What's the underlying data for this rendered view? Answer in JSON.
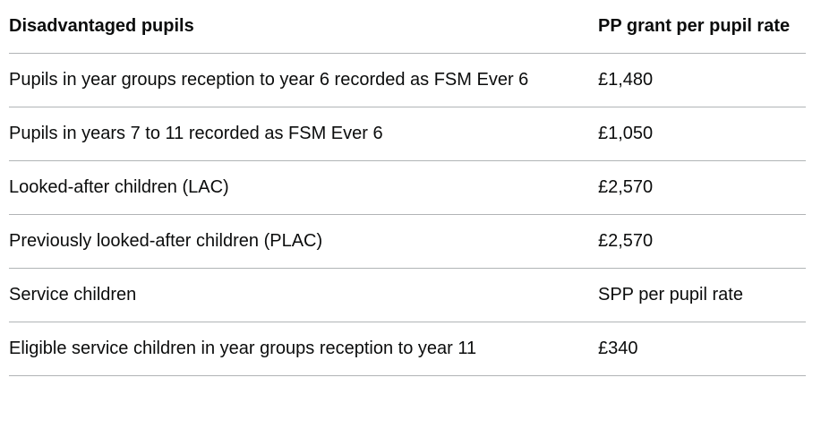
{
  "table": {
    "headers": [
      "Disadvantaged pupils",
      "PP grant per pupil rate"
    ],
    "rows": [
      [
        "Pupils in year groups reception to year 6 recorded as FSM Ever 6",
        "£1,480"
      ],
      [
        "Pupils in years 7 to 11 recorded as FSM Ever 6",
        "£1,050"
      ],
      [
        "Looked-after children (LAC)",
        "£2,570"
      ],
      [
        "Previously looked-after children (PLAC)",
        "£2,570"
      ],
      [
        "Service children",
        "SPP per pupil rate"
      ],
      [
        "Eligible service children in year groups reception to year 11",
        "£340"
      ]
    ]
  }
}
